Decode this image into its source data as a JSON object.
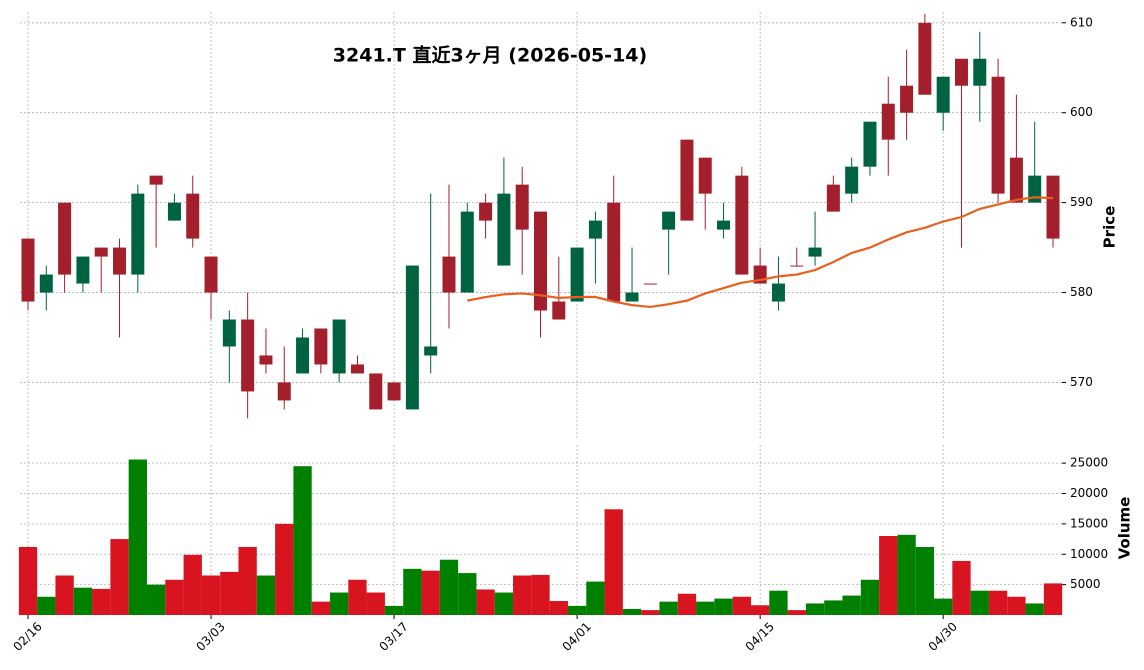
{
  "chart_data": {
    "type": "candlestick",
    "title": "3241.T  直近3ヶ月  (2026-05-14)",
    "y_label": "Price",
    "categories": [
      "02/16",
      null,
      null,
      null,
      null,
      null,
      null,
      null,
      null,
      null,
      "03/03",
      null,
      null,
      null,
      null,
      null,
      null,
      null,
      null,
      null,
      "03/17",
      null,
      null,
      null,
      null,
      null,
      null,
      null,
      null,
      null,
      "04/01",
      null,
      null,
      null,
      null,
      null,
      null,
      null,
      null,
      null,
      "04/15",
      null,
      null,
      null,
      null,
      null,
      null,
      null,
      null,
      null,
      "04/30",
      null,
      null,
      null,
      null,
      null,
      null
    ],
    "open": [
      586,
      580,
      590,
      581,
      585,
      585,
      582,
      593,
      588,
      591,
      584,
      574,
      577,
      573,
      570,
      571,
      576,
      571,
      572,
      571,
      570,
      567,
      573,
      584,
      580,
      590,
      583,
      592,
      589,
      579,
      579,
      586,
      590,
      579,
      581,
      587,
      597,
      595,
      587,
      593,
      583,
      579,
      583,
      584,
      592,
      591,
      594,
      601,
      603,
      610,
      600,
      606,
      603,
      604,
      595,
      590,
      593
    ],
    "high": [
      586,
      583,
      590,
      584,
      585,
      586,
      592,
      593,
      591,
      593,
      584,
      578,
      580,
      576,
      574,
      576,
      576,
      577,
      573,
      571,
      570,
      583,
      591,
      592,
      590,
      591,
      595,
      594,
      589,
      584,
      585,
      589,
      593,
      585,
      581,
      589,
      597,
      595,
      590,
      594,
      585,
      584,
      585,
      589,
      593,
      595,
      599,
      604,
      607,
      611,
      604,
      606,
      609,
      606,
      602,
      599,
      593
    ],
    "low": [
      578,
      578,
      580,
      580,
      580,
      575,
      580,
      585,
      588,
      585,
      577,
      570,
      566,
      571,
      567,
      571,
      571,
      570,
      571,
      567,
      568,
      567,
      571,
      576,
      580,
      586,
      583,
      582,
      575,
      577,
      579,
      581,
      579,
      579,
      581,
      582,
      588,
      587,
      586,
      582,
      581,
      578,
      583,
      583,
      589,
      590,
      593,
      593,
      597,
      602,
      598,
      585,
      599,
      590,
      590,
      590,
      585
    ],
    "close": [
      579,
      582,
      582,
      584,
      584,
      582,
      591,
      592,
      590,
      586,
      580,
      577,
      569,
      572,
      568,
      575,
      572,
      577,
      571,
      567,
      568,
      583,
      574,
      580,
      589,
      588,
      591,
      587,
      578,
      577,
      585,
      588,
      579,
      580,
      581,
      589,
      588,
      591,
      588,
      582,
      581,
      581,
      583,
      585,
      589,
      594,
      599,
      597,
      600,
      602,
      604,
      603,
      606,
      591,
      590,
      593,
      586
    ],
    "up_color": "#006340",
    "down_color": "#a31f2b",
    "ylim": [
      563.6,
      611.2
    ],
    "yticks": [
      570,
      580,
      590,
      600,
      610
    ],
    "grid": true,
    "ma": {
      "color": "#e8601c",
      "values": [
        null,
        null,
        null,
        null,
        null,
        null,
        null,
        null,
        null,
        null,
        null,
        null,
        null,
        null,
        null,
        null,
        null,
        null,
        null,
        null,
        null,
        null,
        null,
        null,
        579.1,
        579.5,
        579.8,
        579.9,
        579.7,
        579.4,
        579.5,
        579.5,
        579.0,
        578.6,
        578.4,
        578.7,
        579.1,
        579.9,
        580.5,
        581.1,
        581.4,
        581.8,
        582.0,
        582.5,
        583.4,
        584.4,
        585.0,
        585.9,
        586.7,
        587.2,
        587.9,
        588.4,
        589.3,
        589.8,
        590.3,
        590.6,
        590.5
      ]
    },
    "volume": {
      "y_label": "Volume",
      "ylim": [
        0,
        27000
      ],
      "yticks": [
        5000,
        10000,
        15000,
        20000,
        25000
      ],
      "values": [
        11200,
        3000,
        6500,
        4500,
        4300,
        12500,
        25600,
        5000,
        5800,
        9900,
        6500,
        7100,
        11200,
        6500,
        15000,
        24500,
        2200,
        3700,
        5800,
        3700,
        1500,
        7600,
        7300,
        9100,
        6900,
        4200,
        3700,
        6500,
        6600,
        2300,
        1500,
        5500,
        17400,
        1000,
        800,
        2200,
        3500,
        2200,
        2700,
        3000,
        1600,
        4000,
        800,
        1900,
        2400,
        3200,
        5800,
        13000,
        13200,
        11200,
        2700,
        8900,
        4000,
        4000,
        3000,
        1900,
        5200
      ],
      "colors": [
        "#d7141f",
        "#008000",
        "#d7141f",
        "#008000",
        "#d7141f",
        "#d7141f",
        "#008000",
        "#008000",
        "#d7141f",
        "#d7141f",
        "#d7141f",
        "#d7141f",
        "#d7141f",
        "#008000",
        "#d7141f",
        "#008000",
        "#d7141f",
        "#008000",
        "#d7141f",
        "#d7141f",
        "#008000",
        "#008000",
        "#d7141f",
        "#008000",
        "#008000",
        "#d7141f",
        "#008000",
        "#d7141f",
        "#d7141f",
        "#d7141f",
        "#008000",
        "#008000",
        "#d7141f",
        "#008000",
        "#d7141f",
        "#008000",
        "#d7141f",
        "#008000",
        "#008000",
        "#d7141f",
        "#d7141f",
        "#008000",
        "#d7141f",
        "#008000",
        "#008000",
        "#008000",
        "#008000",
        "#d7141f",
        "#008000",
        "#008000",
        "#008000",
        "#d7141f",
        "#008000",
        "#d7141f",
        "#d7141f",
        "#008000",
        "#d7141f"
      ]
    }
  }
}
